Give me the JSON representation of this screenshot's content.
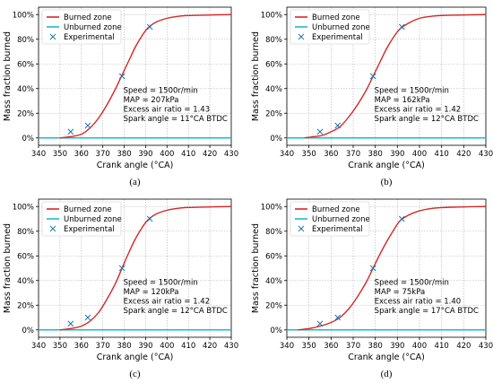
{
  "style": {
    "burned_color": "#d62728",
    "unburned_color": "#17becf",
    "experimental_color": "#1f77b4",
    "grid": true,
    "grid_style": "dotted",
    "legend_position": "upper-left"
  },
  "chart_data": [
    {
      "type": "line",
      "caption": "(a)",
      "xlabel": "Crank angle (°CA)",
      "ylabel": "Mass fraction burned",
      "xlim": [
        340,
        430
      ],
      "ylim": [
        0,
        100
      ],
      "xticks": [
        "340",
        "350",
        "360",
        "370",
        "380",
        "390",
        "400",
        "410",
        "420",
        "430"
      ],
      "yticks": [
        "0%",
        "20%",
        "40%",
        "60%",
        "80%",
        "100%"
      ],
      "legend": [
        "Burned zone",
        "Unburned zone",
        "Experimental"
      ],
      "series": [
        {
          "name": "Burned zone",
          "x": [
            350,
            355,
            360,
            364,
            368,
            372,
            376,
            379,
            382,
            385,
            388,
            391,
            395,
            400,
            405,
            410,
            420,
            430
          ],
          "y": [
            0,
            1,
            3,
            8,
            16,
            27,
            40,
            51,
            62,
            73,
            82,
            89,
            94,
            97,
            98.5,
            99.2,
            99.7,
            100
          ]
        },
        {
          "name": "Unburned zone",
          "x": [
            340,
            430
          ],
          "y": [
            0,
            0
          ]
        },
        {
          "name": "Experimental",
          "x": [
            355,
            363,
            379,
            392
          ],
          "y": [
            5,
            10,
            50,
            90
          ]
        }
      ],
      "annotations": [
        "Speed = 1500r/min",
        "MAP = 207kPa",
        "Excess air ratio = 1.43",
        "Spark angle = 11°CA BTDC"
      ]
    },
    {
      "type": "line",
      "caption": "(b)",
      "xlabel": "Crank angle (°CA)",
      "ylabel": "Mass fraction burned",
      "xlim": [
        340,
        430
      ],
      "ylim": [
        0,
        100
      ],
      "xticks": [
        "340",
        "350",
        "360",
        "370",
        "380",
        "390",
        "400",
        "410",
        "420",
        "430"
      ],
      "yticks": [
        "0%",
        "20%",
        "40%",
        "60%",
        "80%",
        "100%"
      ],
      "legend": [
        "Burned zone",
        "Unburned zone",
        "Experimental"
      ],
      "series": [
        {
          "name": "Burned zone",
          "x": [
            348,
            352,
            356,
            360,
            364,
            368,
            372,
            376,
            379,
            382,
            385,
            388,
            391,
            395,
            400,
            405,
            410,
            420,
            430
          ],
          "y": [
            0,
            1,
            2,
            5,
            9,
            17,
            27,
            39,
            50,
            61,
            72,
            81,
            88,
            93,
            97,
            98.5,
            99.2,
            99.7,
            100
          ]
        },
        {
          "name": "Unburned zone",
          "x": [
            340,
            430
          ],
          "y": [
            0,
            0
          ]
        },
        {
          "name": "Experimental",
          "x": [
            355,
            363,
            379,
            392
          ],
          "y": [
            5,
            10,
            50,
            90
          ]
        }
      ],
      "annotations": [
        "Speed = 1500r/min",
        "MAP = 162kPa",
        "Excess air ratio = 1.42",
        "Spark angle = 12°CA BTDC"
      ]
    },
    {
      "type": "line",
      "caption": "(c)",
      "xlabel": "Crank angle (°CA)",
      "ylabel": "Mass fraction burned",
      "xlim": [
        340,
        430
      ],
      "ylim": [
        0,
        100
      ],
      "xticks": [
        "340",
        "350",
        "360",
        "370",
        "380",
        "390",
        "400",
        "410",
        "420",
        "430"
      ],
      "yticks": [
        "0%",
        "20%",
        "40%",
        "60%",
        "80%",
        "100%"
      ],
      "legend": [
        "Burned zone",
        "Unburned zone",
        "Experimental"
      ],
      "series": [
        {
          "name": "Burned zone",
          "x": [
            350,
            355,
            360,
            364,
            368,
            372,
            376,
            379,
            382,
            385,
            388,
            391,
            395,
            400,
            405,
            410,
            420,
            430
          ],
          "y": [
            0,
            1,
            3,
            7,
            14,
            25,
            38,
            50,
            62,
            73,
            82,
            89,
            94,
            97,
            98.5,
            99.2,
            99.7,
            100
          ]
        },
        {
          "name": "Unburned zone",
          "x": [
            340,
            430
          ],
          "y": [
            0,
            0
          ]
        },
        {
          "name": "Experimental",
          "x": [
            355,
            363,
            379,
            392
          ],
          "y": [
            5,
            10,
            50,
            90
          ]
        }
      ],
      "annotations": [
        "Speed = 1500r/min",
        "MAP = 120kPa",
        "Excess air ratio = 1.42",
        "Spark angle = 12°CA BTDC"
      ]
    },
    {
      "type": "line",
      "caption": "(d)",
      "xlabel": "Crank angle (°CA)",
      "ylabel": "Mass fraction burned",
      "xlim": [
        340,
        430
      ],
      "ylim": [
        0,
        100
      ],
      "xticks": [
        "340",
        "350",
        "360",
        "370",
        "380",
        "390",
        "400",
        "410",
        "420",
        "430"
      ],
      "yticks": [
        "0%",
        "20%",
        "40%",
        "60%",
        "80%",
        "100%"
      ],
      "legend": [
        "Burned zone",
        "Unburned zone",
        "Experimental"
      ],
      "series": [
        {
          "name": "Burned zone",
          "x": [
            345,
            350,
            355,
            360,
            364,
            368,
            372,
            376,
            379,
            382,
            385,
            388,
            391,
            395,
            400,
            405,
            410,
            420,
            430
          ],
          "y": [
            0,
            1,
            3,
            6,
            10,
            17,
            27,
            39,
            50,
            61,
            71,
            80,
            88,
            93,
            96.5,
            98.3,
            99.1,
            99.7,
            100
          ]
        },
        {
          "name": "Unburned zone",
          "x": [
            340,
            430
          ],
          "y": [
            0,
            0
          ]
        },
        {
          "name": "Experimental",
          "x": [
            355,
            363,
            379,
            392
          ],
          "y": [
            5,
            10,
            50,
            90
          ]
        }
      ],
      "annotations": [
        "Speed = 1500r/min",
        "MAP = 75kPa",
        "Excess air ratio = 1.40",
        "Spark angle = 17°CA BTDC"
      ]
    }
  ]
}
